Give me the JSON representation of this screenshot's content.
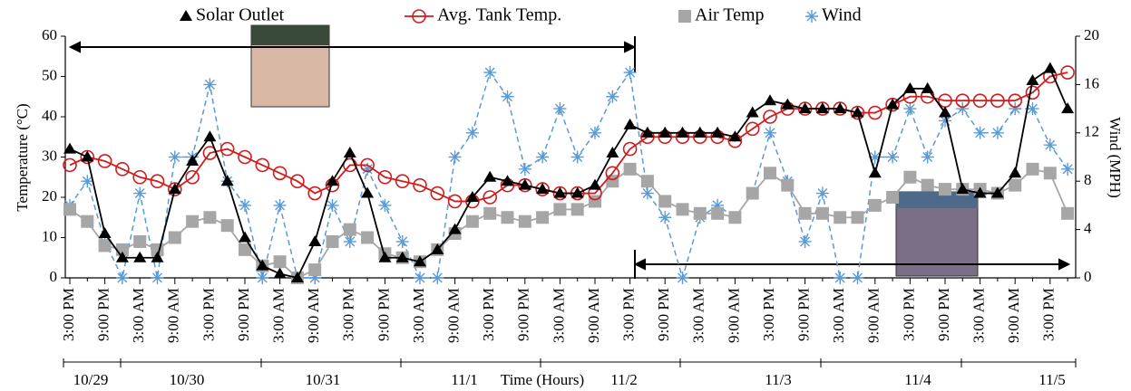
{
  "chart_data": {
    "type": "line",
    "ylabel": "Temperature (°C)",
    "y2label": "Wind (MPH)",
    "xlabel": "Time (Hours)",
    "date_labels": [
      "10/29",
      "10/30",
      "10/31",
      "11/1",
      "11/2",
      "11/3",
      "11/4",
      "11/5"
    ],
    "categories": [
      "3:00 PM",
      null,
      "9:00 PM",
      null,
      "3:00 AM",
      null,
      "9:00 AM",
      null,
      "3:00 PM",
      null,
      "9:00 PM",
      null,
      "3:00 AM",
      null,
      "9:00 AM",
      null,
      "3:00 PM",
      null,
      "9:00 PM",
      null,
      "3:00 AM",
      null,
      "9:00 AM",
      null,
      "3:00 PM",
      null,
      "9:00 PM",
      null,
      "3:00 AM",
      null,
      "9:00 AM",
      null,
      "3:00 PM",
      null,
      "9:00 PM",
      null,
      "3:00 AM",
      null,
      "9:00 AM",
      null,
      "3:00 PM",
      null,
      "9:00 PM",
      null,
      "3:00 AM",
      null,
      "9:00 AM",
      null,
      "3:00 PM",
      null,
      "9:00 PM",
      null,
      "3:00 AM",
      null,
      "9:00 AM",
      null,
      "3:00 PM",
      null
    ],
    "ylim": [
      0,
      60
    ],
    "yticks": [
      0,
      10,
      20,
      30,
      40,
      50,
      60
    ],
    "y2lim": [
      0,
      20
    ],
    "y2ticks": [
      0,
      4,
      8,
      12,
      16,
      20
    ],
    "series": [
      {
        "name": "Solar Outlet",
        "color": "#000000",
        "marker": "triangle",
        "values": [
          32,
          30,
          11,
          5,
          5,
          5,
          22,
          29,
          35,
          24,
          10,
          3,
          1,
          0,
          9,
          24,
          31,
          21,
          5,
          5,
          4,
          7,
          12,
          20,
          25,
          24,
          23,
          22,
          21,
          21,
          23,
          31,
          38,
          36,
          36,
          36,
          36,
          36,
          35,
          41,
          44,
          43,
          42,
          42,
          42,
          41,
          26,
          43,
          47,
          47,
          41,
          22,
          21,
          21,
          26,
          49,
          52,
          42
        ]
      },
      {
        "name": "Avg. Tank Temp.",
        "color": "#d01c1c",
        "marker": "circle",
        "values": [
          28,
          30,
          29,
          27,
          25,
          24,
          22,
          25,
          31,
          32,
          30,
          28,
          26,
          24,
          21,
          23,
          28,
          28,
          25,
          24,
          23,
          21,
          19,
          19,
          20,
          23,
          23,
          22,
          21,
          21,
          21,
          26,
          32,
          35,
          35,
          35,
          35,
          35,
          34,
          37,
          40,
          42,
          42,
          42,
          42,
          41,
          41,
          43,
          45,
          45,
          44,
          44,
          44,
          44,
          44,
          46,
          50,
          51
        ]
      },
      {
        "name": "Air Temp",
        "color": "#a6a6a6",
        "marker": "square",
        "values": [
          17,
          14,
          8,
          7,
          9,
          7,
          10,
          14,
          15,
          13,
          7,
          3,
          4,
          0,
          2,
          9,
          12,
          10,
          6,
          5,
          4,
          7,
          11,
          14,
          16,
          15,
          14,
          15,
          17,
          17,
          19,
          24,
          27,
          24,
          19,
          17,
          16,
          16,
          15,
          21,
          26,
          23,
          16,
          16,
          15,
          15,
          18,
          20,
          25,
          23,
          22,
          22,
          22,
          21,
          23,
          27,
          26,
          16
        ]
      },
      {
        "name": "Wind",
        "color": "#5b9bd5",
        "marker": "asterisk",
        "axis": "y2",
        "values": [
          6,
          8,
          3,
          0,
          7,
          0,
          10,
          10,
          16,
          8,
          6,
          0,
          6,
          0,
          0,
          6,
          3,
          9,
          6,
          3,
          0,
          0,
          10,
          12,
          17,
          15,
          9,
          10,
          14,
          10,
          12,
          15,
          17,
          7,
          5,
          0,
          5,
          6,
          5,
          7,
          12,
          8,
          3,
          7,
          0,
          0,
          10,
          10,
          14,
          10,
          13,
          14,
          12,
          12,
          14,
          14,
          11,
          9
        ]
      }
    ]
  }
}
